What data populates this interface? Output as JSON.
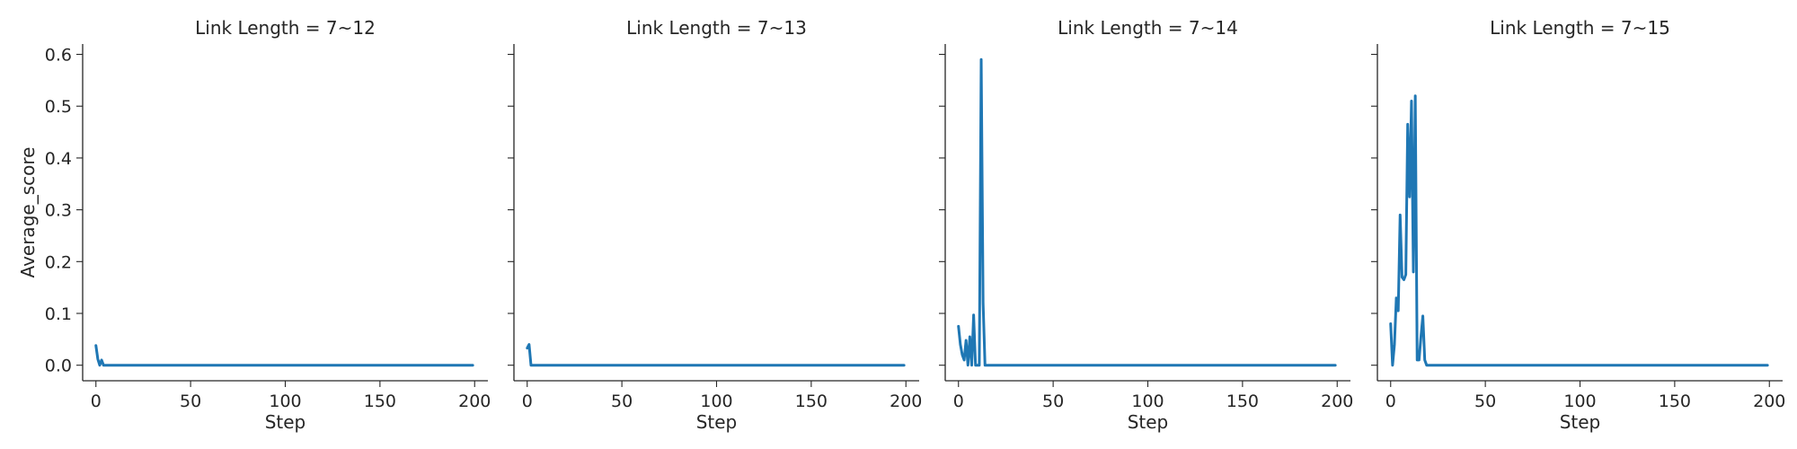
{
  "chart_data": {
    "type": "line",
    "layout": "facet-row",
    "shared_y": true,
    "ylabel": "Average_score",
    "ylim": [
      -0.03,
      0.62
    ],
    "yticks": [
      0.0,
      0.1,
      0.2,
      0.3,
      0.4,
      0.5,
      0.6
    ],
    "ytick_labels": [
      "0.0",
      "0.1",
      "0.2",
      "0.3",
      "0.4",
      "0.5",
      "0.6"
    ],
    "xlim": [
      -7,
      207
    ],
    "xticks": [
      0,
      50,
      100,
      150,
      200
    ],
    "xtick_labels": [
      "0",
      "50",
      "100",
      "150",
      "200"
    ],
    "line_color": "#1f77b4",
    "grid": false,
    "panels": [
      {
        "title": "Link Length = 7~12",
        "xlabel": "Step",
        "x": [
          0,
          1,
          2,
          3,
          4,
          5,
          6,
          199
        ],
        "y": [
          0.038,
          0.012,
          0.0,
          0.01,
          0.0,
          0.0,
          0.0,
          0.0
        ]
      },
      {
        "title": "Link Length = 7~13",
        "xlabel": "Step",
        "x": [
          0,
          1,
          2,
          3,
          4,
          199
        ],
        "y": [
          0.033,
          0.04,
          0.0,
          0.0,
          0.0,
          0.0
        ]
      },
      {
        "title": "Link Length = 7~14",
        "xlabel": "Step",
        "x": [
          0,
          1,
          2,
          3,
          4,
          5,
          6,
          7,
          8,
          9,
          10,
          11,
          12,
          13,
          14,
          15,
          199
        ],
        "y": [
          0.075,
          0.04,
          0.02,
          0.01,
          0.048,
          0.0,
          0.055,
          0.0,
          0.097,
          0.0,
          0.0,
          0.0,
          0.59,
          0.12,
          0.0,
          0.0,
          0.0
        ]
      },
      {
        "title": "Link Length = 7~15",
        "xlabel": "Step",
        "x": [
          0,
          1,
          2,
          3,
          4,
          5,
          6,
          7,
          8,
          9,
          10,
          11,
          12,
          13,
          14,
          15,
          16,
          17,
          18,
          19,
          20,
          21,
          22,
          23,
          24,
          25,
          199
        ],
        "y": [
          0.08,
          0.0,
          0.04,
          0.13,
          0.105,
          0.29,
          0.17,
          0.165,
          0.175,
          0.465,
          0.325,
          0.51,
          0.18,
          0.52,
          0.01,
          0.01,
          0.055,
          0.095,
          0.01,
          0.0,
          0.0,
          0.0,
          0.0,
          0.0,
          0.0,
          0.0,
          0.0
        ]
      }
    ]
  }
}
